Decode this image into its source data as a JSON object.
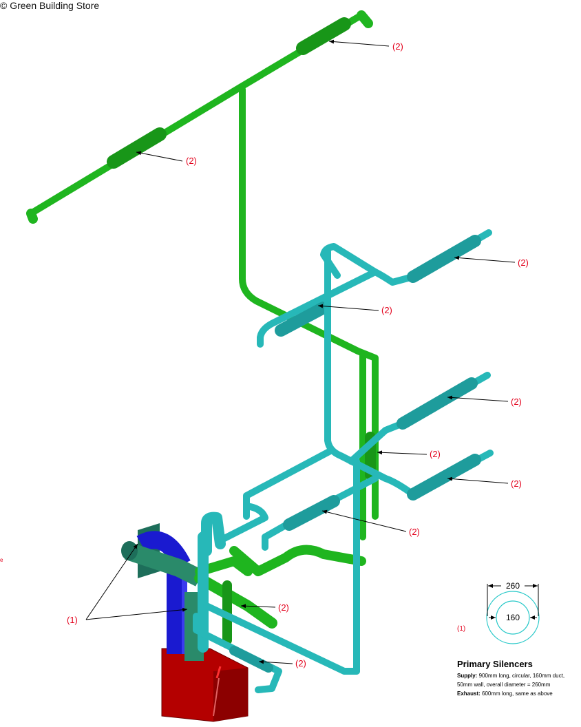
{
  "copyright": "© Green Building Store",
  "callouts": {
    "silencer": "(2)",
    "unit": "(1)"
  },
  "detail": {
    "outer_dim": "260",
    "inner_dim": "160",
    "ref": "(1)"
  },
  "legend": {
    "title": "Primary Silencers",
    "supply_label": "Supply:",
    "supply_line1": " 900mm long, circular, 160mm duct,",
    "supply_line2": "50mm wall, overall diameter = 260mm",
    "exhaust_label": "Exhaust:",
    "exhaust_text": " 600mm long, same as above"
  },
  "stray_mark": "e",
  "colors": {
    "supply_green": "#1fb51f",
    "extract_cyan": "#27b8b8",
    "duct_blue": "#1a1ad0",
    "unit_red": "#b40000",
    "teal": "#2a8a6a",
    "callout_red": "#e3001b"
  }
}
